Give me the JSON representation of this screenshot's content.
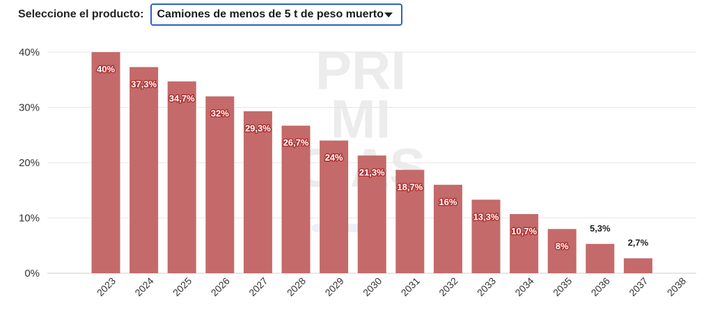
{
  "product_selector": {
    "label": "Seleccione el producto:",
    "selected": "Camiones de menos de 5 t de peso muerto"
  },
  "watermark": [
    "PRI",
    "MI",
    "CIAS"
  ],
  "colors": {
    "bar": "#c46a6a",
    "grid": "#e6e6e6",
    "label_inside": "#ffffff",
    "label_outside": "#222222",
    "label_outline": "#b03030"
  },
  "chart_data": {
    "type": "bar",
    "categories": [
      "2023",
      "2024",
      "2025",
      "2026",
      "2027",
      "2028",
      "2029",
      "2030",
      "2031",
      "2032",
      "2033",
      "2034",
      "2035",
      "2036",
      "2037",
      "2038"
    ],
    "values": [
      40,
      37.3,
      34.7,
      32,
      29.3,
      26.7,
      24,
      21.3,
      18.7,
      16,
      13.3,
      10.7,
      8,
      5.3,
      2.7,
      null
    ],
    "data_labels": [
      "40%",
      "37,3%",
      "34,7%",
      "32%",
      "29,3%",
      "26,7%",
      "24%",
      "21,3%",
      "18,7%",
      "16%",
      "13,3%",
      "10,7%",
      "8%",
      "5,3%",
      "2,7%",
      ""
    ],
    "y_ticks": [
      0,
      10,
      20,
      30,
      40
    ],
    "y_tick_labels": [
      "0%",
      "10%",
      "20%",
      "30%",
      "40%"
    ],
    "ylim": [
      0,
      40
    ],
    "grid": true,
    "legend": "none"
  }
}
